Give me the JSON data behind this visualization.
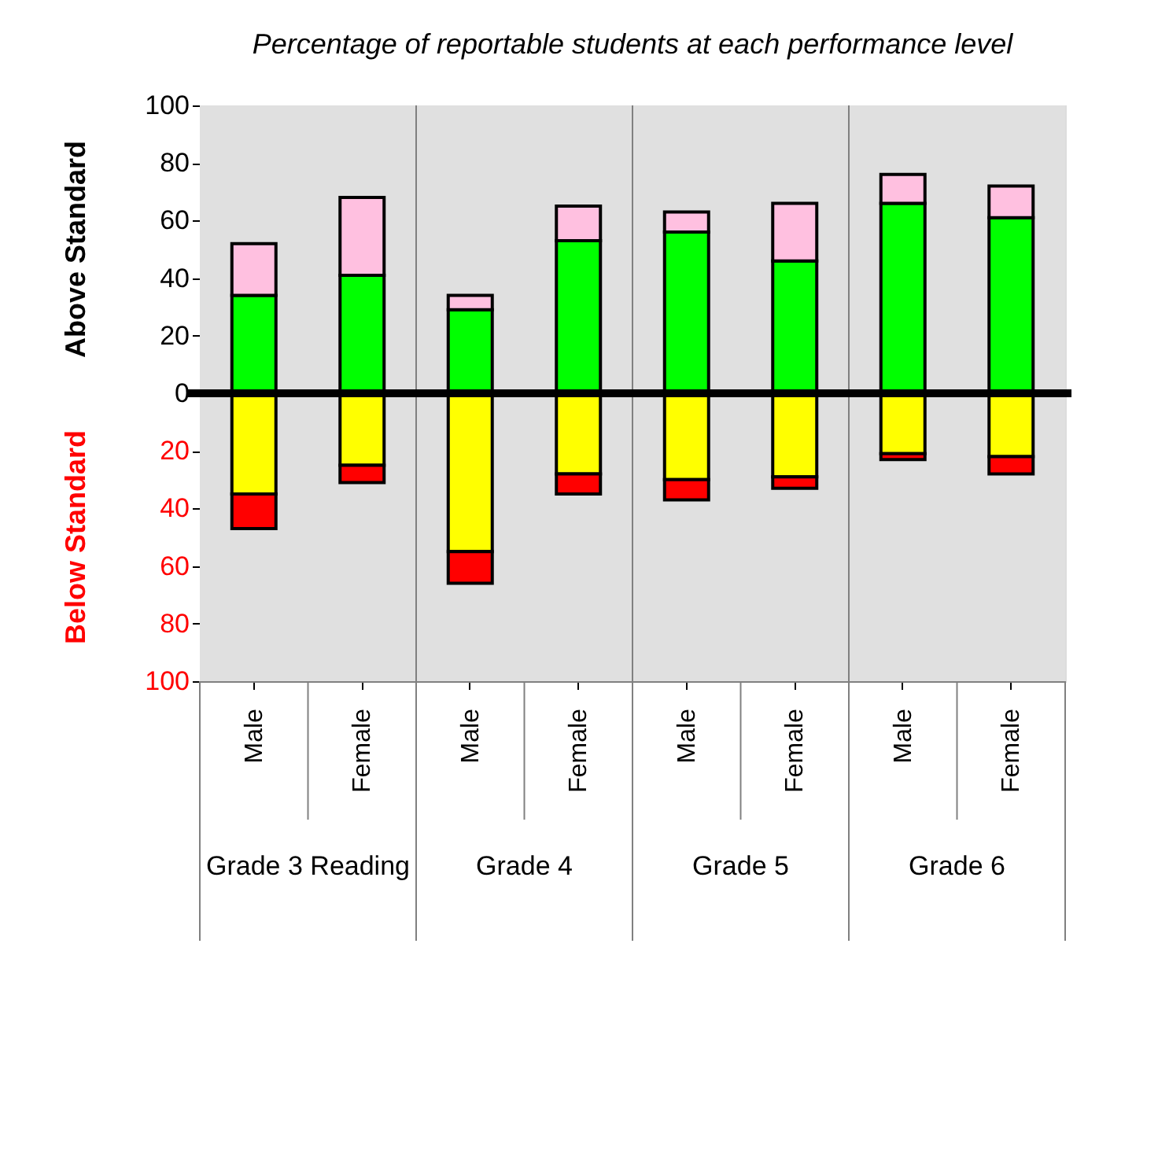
{
  "chart_data": {
    "type": "bar",
    "stacked": true,
    "title": "Percentage of reportable students at each performance level",
    "ylabel": "Above Standard",
    "categories": [
      "Male",
      "Female",
      "Male",
      "Female",
      "Male",
      "Female",
      "Male",
      "Female"
    ],
    "series": [
      {
        "color": "#00ff00",
        "values": [
          34,
          41,
          29,
          53,
          56,
          46,
          66,
          61
        ]
      },
      {
        "color": "#ffc0e0",
        "values": [
          18,
          27,
          5,
          12,
          7,
          20,
          10,
          11
        ]
      },
      {
        "color": "#ffff00",
        "values": [
          -35,
          -25,
          -55,
          -28,
          -30,
          -29,
          -21,
          -22
        ]
      },
      {
        "color": "#ff0000",
        "values": [
          -12,
          -6,
          -11,
          -7,
          -7,
          -4,
          -2,
          -6
        ]
      }
    ],
    "ylim": [
      -100,
      100
    ],
    "yticks": [
      {
        "value": -100,
        "label": "100"
      },
      {
        "value": -80,
        "label": "80"
      },
      {
        "value": -60,
        "label": "60"
      },
      {
        "value": -40,
        "label": "40"
      },
      {
        "value": -20,
        "label": "20"
      },
      0,
      20,
      40,
      60,
      80,
      100
    ],
    "ref_lines": [
      {
        "axis": "y",
        "value": 0,
        "color": "#000000"
      }
    ],
    "annotations": [
      "Below Standard",
      "Grade 3 Reading",
      "Grade 4",
      "Grade 5",
      "Grade 6"
    ]
  }
}
